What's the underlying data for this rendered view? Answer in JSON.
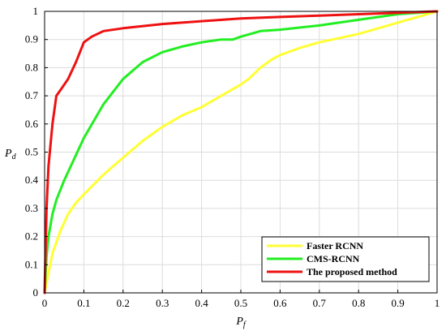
{
  "chart_data": {
    "type": "line",
    "xlabel": "Pf",
    "ylabel": "Pd",
    "xlim": [
      0,
      1
    ],
    "ylim": [
      0,
      1
    ],
    "x_ticks": [
      "0",
      "0.1",
      "0.2",
      "0.3",
      "0.4",
      "0.5",
      "0.6",
      "0.7",
      "0.8",
      "0.9",
      "1"
    ],
    "y_ticks": [
      "0",
      "0.1",
      "0.2",
      "0.3",
      "0.4",
      "0.5",
      "0.6",
      "0.7",
      "0.8",
      "0.9",
      "1"
    ],
    "grid": true,
    "legend_position": "bottom-right",
    "series": [
      {
        "name": "Faster RCNN",
        "color": "#ffff33",
        "x": [
          0,
          0.01,
          0.02,
          0.04,
          0.06,
          0.08,
          0.1,
          0.15,
          0.2,
          0.25,
          0.3,
          0.35,
          0.4,
          0.45,
          0.5,
          0.52,
          0.55,
          0.58,
          0.6,
          0.65,
          0.7,
          0.8,
          0.9,
          1.0
        ],
        "y": [
          0,
          0.07,
          0.14,
          0.22,
          0.28,
          0.32,
          0.35,
          0.42,
          0.48,
          0.54,
          0.59,
          0.63,
          0.66,
          0.7,
          0.74,
          0.76,
          0.8,
          0.83,
          0.845,
          0.87,
          0.89,
          0.92,
          0.96,
          1.0
        ]
      },
      {
        "name": "CMS-RCNN",
        "color": "#22ee22",
        "x": [
          0,
          0.005,
          0.01,
          0.02,
          0.03,
          0.05,
          0.08,
          0.1,
          0.15,
          0.2,
          0.25,
          0.3,
          0.35,
          0.4,
          0.45,
          0.48,
          0.5,
          0.55,
          0.6,
          0.7,
          0.8,
          0.9,
          1.0
        ],
        "y": [
          0,
          0.13,
          0.2,
          0.28,
          0.33,
          0.4,
          0.49,
          0.55,
          0.67,
          0.76,
          0.82,
          0.855,
          0.875,
          0.89,
          0.9,
          0.9,
          0.91,
          0.93,
          0.935,
          0.95,
          0.97,
          0.99,
          1.0
        ]
      },
      {
        "name": "The proposed method",
        "color": "#ee1111",
        "x": [
          0,
          0.005,
          0.01,
          0.02,
          0.03,
          0.04,
          0.06,
          0.08,
          0.1,
          0.12,
          0.15,
          0.2,
          0.3,
          0.4,
          0.5,
          0.6,
          0.7,
          0.8,
          0.9,
          1.0
        ],
        "y": [
          0,
          0.3,
          0.45,
          0.6,
          0.7,
          0.72,
          0.76,
          0.82,
          0.89,
          0.91,
          0.93,
          0.94,
          0.955,
          0.965,
          0.975,
          0.98,
          0.985,
          0.99,
          0.995,
          1.0
        ]
      }
    ]
  }
}
